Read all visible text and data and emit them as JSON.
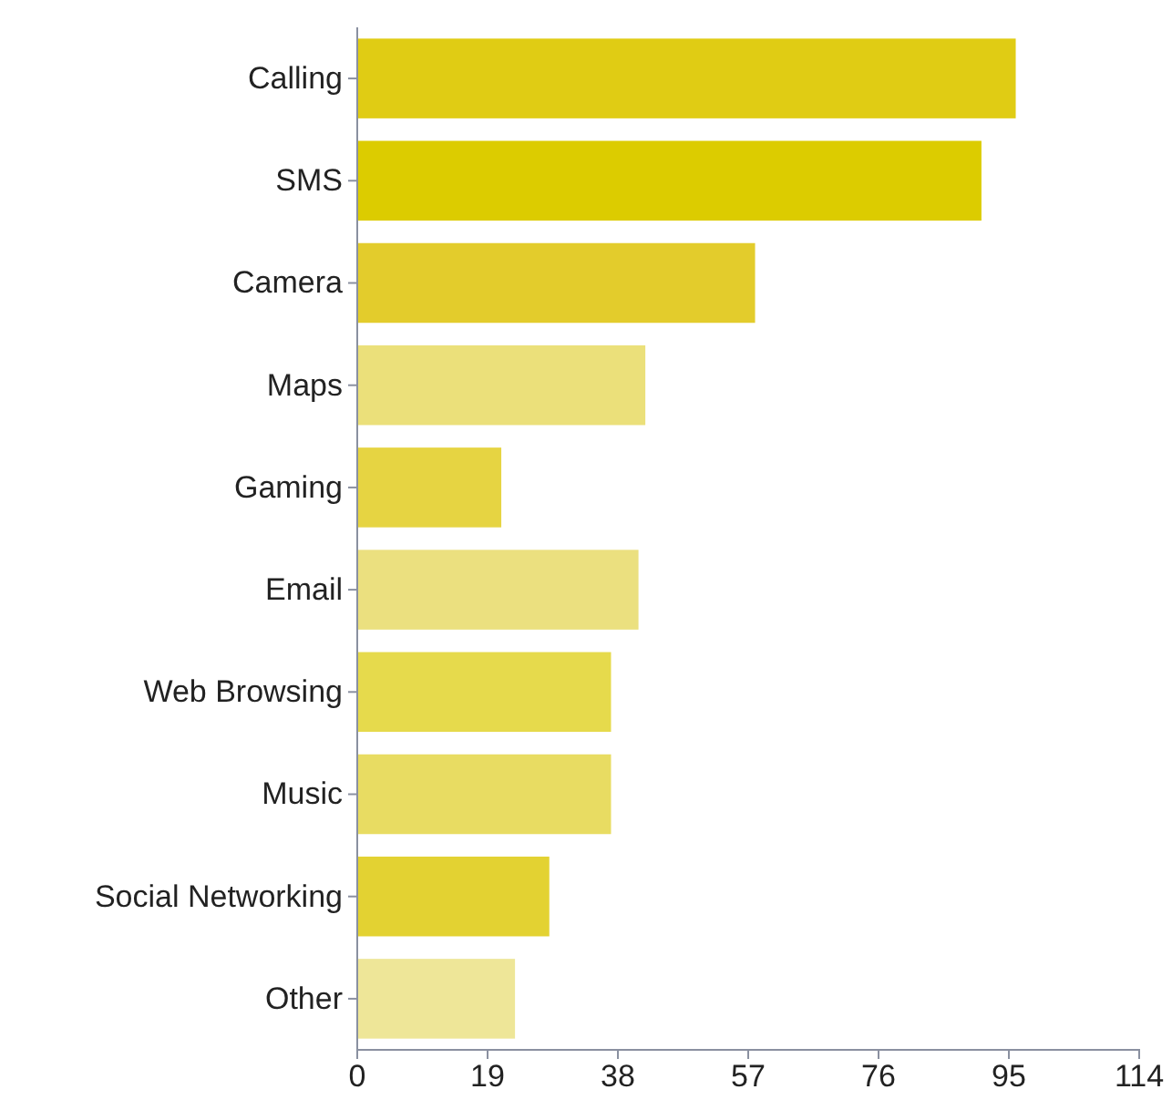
{
  "chart_data": {
    "type": "bar",
    "orientation": "horizontal",
    "categories": [
      "Calling",
      "SMS",
      "Camera",
      "Maps",
      "Gaming",
      "Email",
      "Web Browsing",
      "Music",
      "Social Networking",
      "Other"
    ],
    "values": [
      96,
      91,
      58,
      42,
      21,
      41,
      37,
      37,
      28,
      23
    ],
    "colors": [
      "#e0cc14",
      "#dccc00",
      "#e3cc2c",
      "#ebe07a",
      "#e6d442",
      "#ebe07f",
      "#e6da4c",
      "#e8dc62",
      "#e3d232",
      "#eee698"
    ],
    "xlim": [
      0,
      114
    ],
    "xticks": [
      0,
      19,
      38,
      57,
      76,
      95,
      114
    ],
    "grid": false
  }
}
